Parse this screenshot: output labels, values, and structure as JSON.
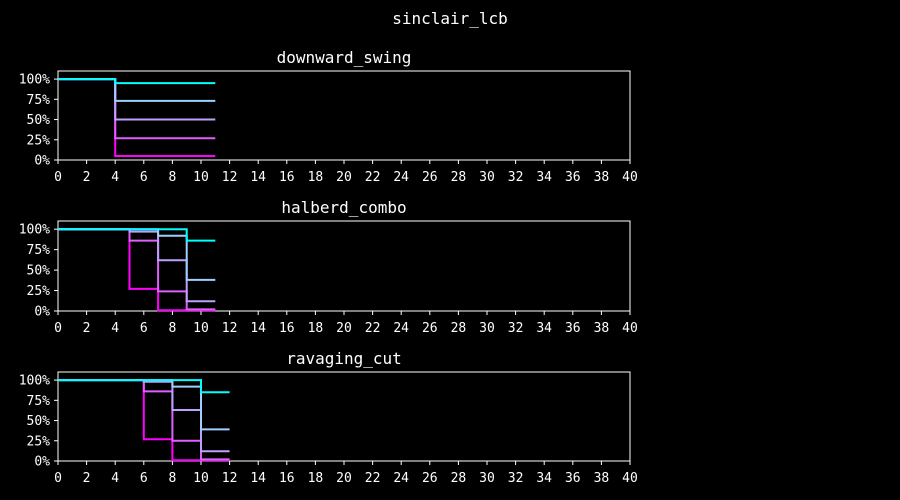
{
  "figure_title": "sinclair_lcb",
  "chart_data": [
    {
      "type": "line",
      "step": "post",
      "title": "downward_swing",
      "xlim": [
        0,
        40
      ],
      "ylim": [
        0,
        1.1
      ],
      "xticks": [
        "0",
        "2",
        "4",
        "6",
        "8",
        "10",
        "12",
        "14",
        "16",
        "18",
        "20",
        "22",
        "24",
        "26",
        "28",
        "30",
        "32",
        "34",
        "36",
        "38",
        "40"
      ],
      "yticks": [
        {
          "value": 0,
          "label": "0%"
        },
        {
          "value": 0.25,
          "label": "25%"
        },
        {
          "value": 0.5,
          "label": "50%"
        },
        {
          "value": 0.75,
          "label": "75%"
        },
        {
          "value": 1,
          "label": "100%"
        }
      ],
      "series": [
        {
          "color": "#ff00ff",
          "x": [
            0,
            4,
            11
          ],
          "y": [
            1.0,
            0.05,
            0.05
          ]
        },
        {
          "color": "#df5fff",
          "x": [
            0,
            4,
            11
          ],
          "y": [
            1.0,
            0.27,
            0.27
          ]
        },
        {
          "color": "#bf9fff",
          "x": [
            0,
            4,
            11
          ],
          "y": [
            1.0,
            0.5,
            0.5
          ]
        },
        {
          "color": "#9fcfff",
          "x": [
            0,
            4,
            11
          ],
          "y": [
            1.0,
            0.73,
            0.73
          ]
        },
        {
          "color": "#00ffff",
          "x": [
            0,
            4,
            11
          ],
          "y": [
            1.0,
            0.95,
            0.95
          ]
        }
      ]
    },
    {
      "type": "line",
      "step": "post",
      "title": "halberd_combo",
      "xlim": [
        0,
        40
      ],
      "ylim": [
        0,
        1.1
      ],
      "xticks": [
        "0",
        "2",
        "4",
        "6",
        "8",
        "10",
        "12",
        "14",
        "16",
        "18",
        "20",
        "22",
        "24",
        "26",
        "28",
        "30",
        "32",
        "34",
        "36",
        "38",
        "40"
      ],
      "yticks": [
        {
          "value": 0,
          "label": "0%"
        },
        {
          "value": 0.25,
          "label": "25%"
        },
        {
          "value": 0.5,
          "label": "50%"
        },
        {
          "value": 0.75,
          "label": "75%"
        },
        {
          "value": 1,
          "label": "100%"
        }
      ],
      "series": [
        {
          "color": "#ff00ff",
          "x": [
            0,
            5,
            7,
            11
          ],
          "y": [
            1.0,
            0.27,
            0.01,
            0.01
          ]
        },
        {
          "color": "#df5fff",
          "x": [
            0,
            5,
            7,
            9,
            11
          ],
          "y": [
            1.0,
            0.86,
            0.24,
            0.02,
            0.02
          ]
        },
        {
          "color": "#bf9fff",
          "x": [
            0,
            5,
            7,
            9,
            11
          ],
          "y": [
            1.0,
            0.97,
            0.62,
            0.12,
            0.12
          ]
        },
        {
          "color": "#9fcfff",
          "x": [
            0,
            7,
            9,
            11
          ],
          "y": [
            1.0,
            0.92,
            0.38,
            0.38
          ]
        },
        {
          "color": "#00ffff",
          "x": [
            0,
            9,
            11
          ],
          "y": [
            1.0,
            0.86,
            0.86
          ]
        }
      ]
    },
    {
      "type": "line",
      "step": "post",
      "title": "ravaging_cut",
      "xlim": [
        0,
        40
      ],
      "ylim": [
        0,
        1.1
      ],
      "xticks": [
        "0",
        "2",
        "4",
        "6",
        "8",
        "10",
        "12",
        "14",
        "16",
        "18",
        "20",
        "22",
        "24",
        "26",
        "28",
        "30",
        "32",
        "34",
        "36",
        "38",
        "40"
      ],
      "yticks": [
        {
          "value": 0,
          "label": "0%"
        },
        {
          "value": 0.25,
          "label": "25%"
        },
        {
          "value": 0.5,
          "label": "50%"
        },
        {
          "value": 0.75,
          "label": "75%"
        },
        {
          "value": 1,
          "label": "100%"
        }
      ],
      "series": [
        {
          "color": "#ff00ff",
          "x": [
            0,
            6,
            8,
            12
          ],
          "y": [
            1.0,
            0.27,
            0.01,
            0.01
          ]
        },
        {
          "color": "#df5fff",
          "x": [
            0,
            6,
            8,
            10,
            12
          ],
          "y": [
            1.0,
            0.86,
            0.25,
            0.02,
            0.02
          ]
        },
        {
          "color": "#bf9fff",
          "x": [
            0,
            6,
            8,
            10,
            12
          ],
          "y": [
            1.0,
            0.98,
            0.63,
            0.12,
            0.12
          ]
        },
        {
          "color": "#9fcfff",
          "x": [
            0,
            8,
            10,
            12
          ],
          "y": [
            1.0,
            0.92,
            0.39,
            0.39
          ]
        },
        {
          "color": "#00ffff",
          "x": [
            0,
            10,
            12
          ],
          "y": [
            1.0,
            0.85,
            0.85
          ]
        }
      ]
    }
  ]
}
